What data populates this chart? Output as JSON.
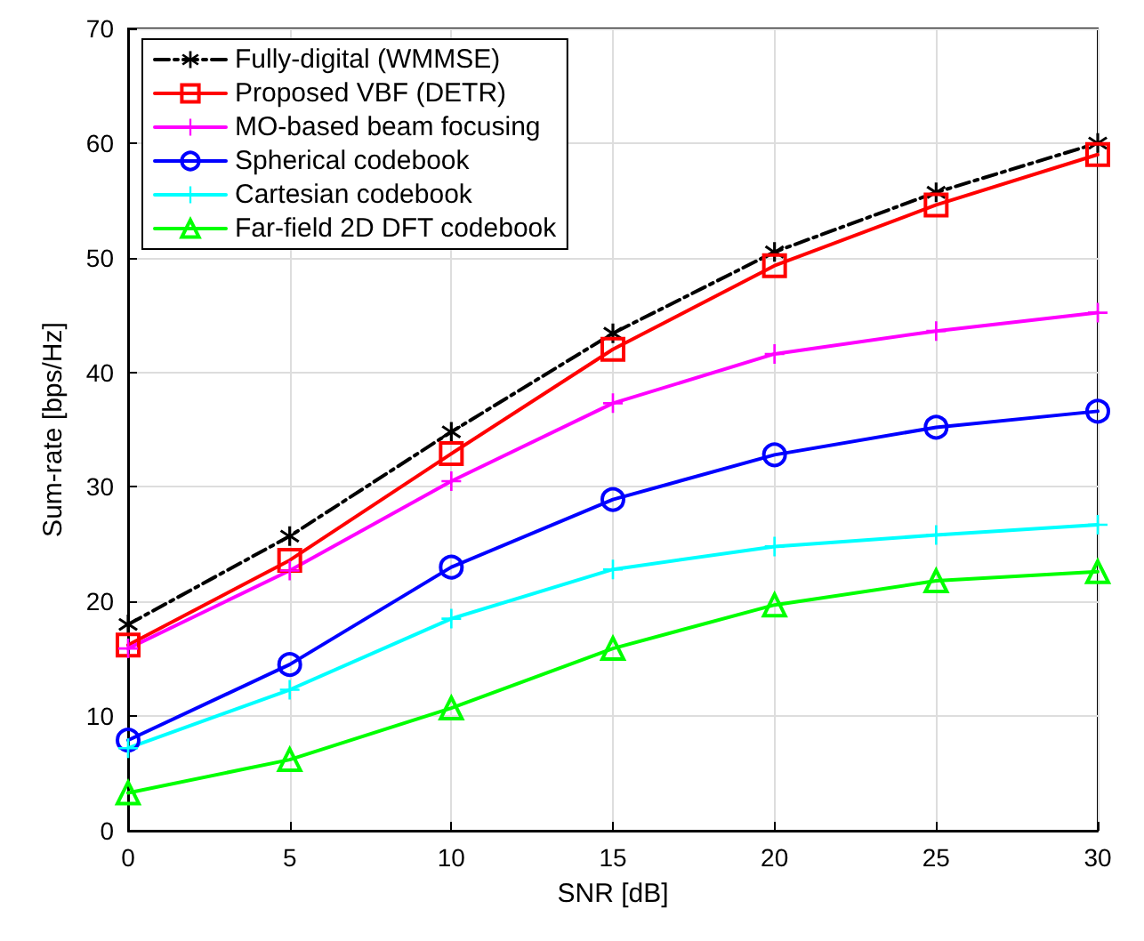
{
  "chart_data": {
    "type": "line",
    "xlabel": "SNR [dB]",
    "ylabel": "Sum-rate [bps/Hz]",
    "x": [
      0,
      5,
      10,
      15,
      20,
      25,
      30
    ],
    "series": [
      {
        "name": "Fully-digital (WMMSE)",
        "color": "#000000",
        "marker": "star",
        "line_style": "dashed",
        "values": [
          18.0,
          25.7,
          34.8,
          43.4,
          50.5,
          55.7,
          60.0
        ]
      },
      {
        "name": "Proposed VBF (DETR)",
        "color": "#ff0000",
        "marker": "square",
        "line_style": "solid",
        "values": [
          16.2,
          23.6,
          32.9,
          42.0,
          49.3,
          54.6,
          59.0
        ]
      },
      {
        "name": "MO-based beam focusing",
        "color": "#ff00ff",
        "marker": "cross",
        "line_style": "solid",
        "values": [
          15.9,
          22.7,
          30.5,
          37.3,
          41.6,
          43.6,
          45.2
        ]
      },
      {
        "name": "Spherical codebook",
        "color": "#0000ff",
        "marker": "circle",
        "line_style": "solid",
        "values": [
          7.9,
          14.5,
          23.0,
          28.9,
          32.8,
          35.2,
          36.6
        ]
      },
      {
        "name": "Cartesian codebook",
        "color": "#00ffff",
        "marker": "cross",
        "line_style": "solid",
        "values": [
          7.2,
          12.3,
          18.5,
          22.8,
          24.8,
          25.8,
          26.7
        ]
      },
      {
        "name": "Far-field 2D DFT codebook",
        "color": "#00ff00",
        "marker": "triangle",
        "line_style": "solid",
        "values": [
          3.3,
          6.2,
          10.7,
          15.9,
          19.7,
          21.8,
          22.6
        ]
      }
    ],
    "xlim": [
      0,
      30
    ],
    "xticks": [
      0,
      5,
      10,
      15,
      20,
      25,
      30
    ],
    "ylim": [
      0,
      70
    ],
    "yticks": [
      0,
      10,
      20,
      30,
      40,
      50,
      60,
      70
    ],
    "grid": true,
    "legend": "top left"
  }
}
